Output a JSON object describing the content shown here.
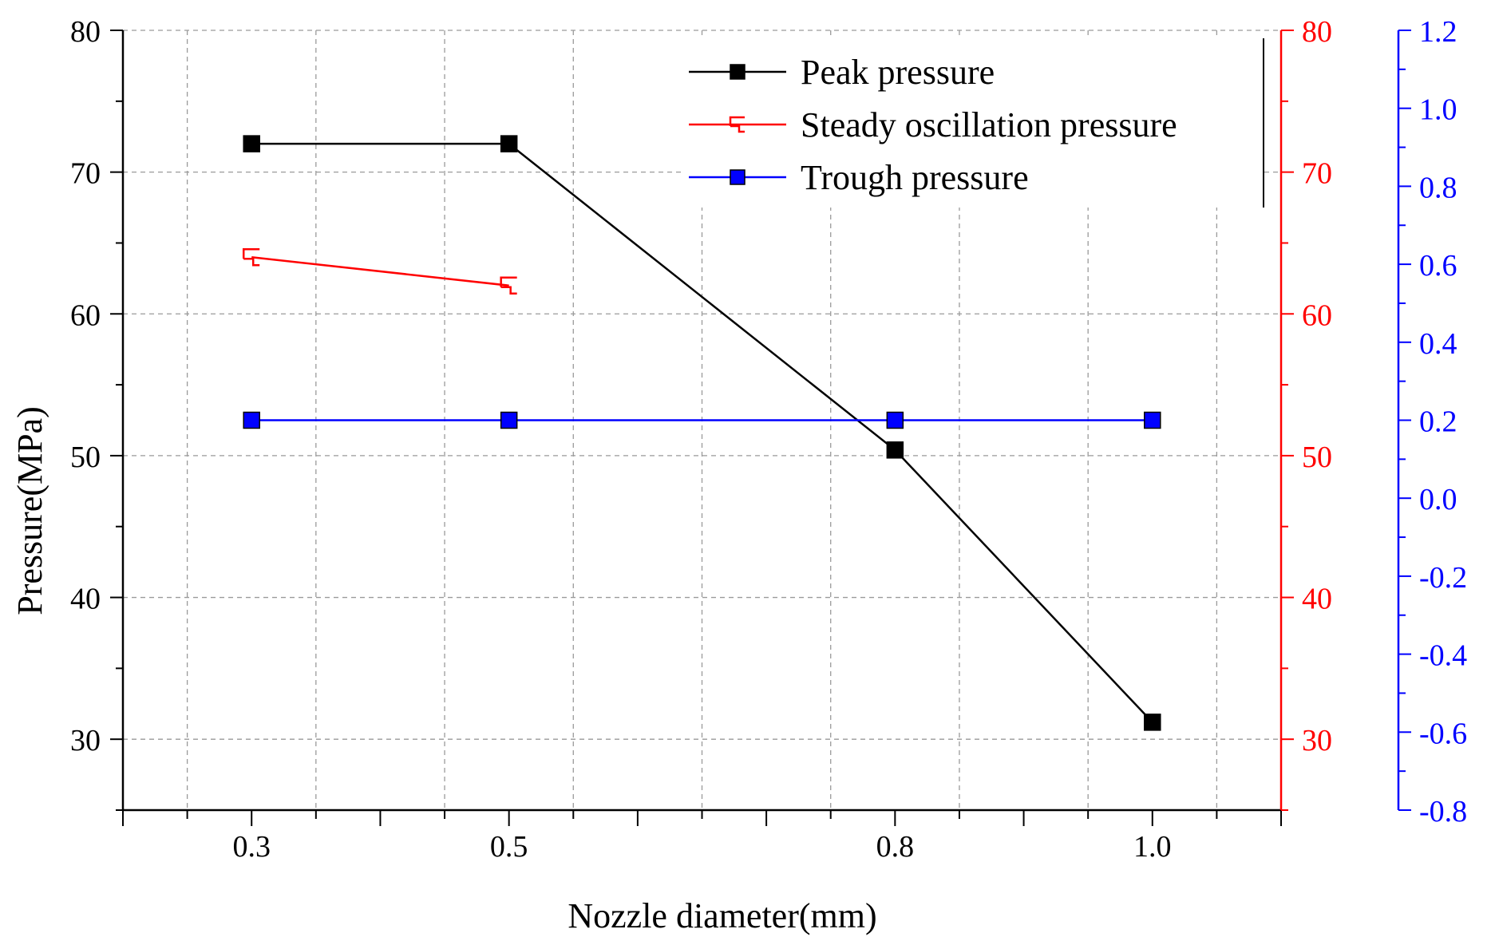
{
  "chart_data": {
    "type": "line",
    "xlabel": "Nozzle diameter(mm)",
    "ylabel": "Pressure(MPa)",
    "x_ticks": [
      "0.3",
      "0.5",
      "0.8",
      "1.0"
    ],
    "xlim": [
      0.2,
      1.1
    ],
    "y_left_ticks": [
      "30",
      "40",
      "50",
      "60",
      "70",
      "80"
    ],
    "ylim_left": [
      25,
      80
    ],
    "y_right_red_ticks": [
      "30",
      "40",
      "50",
      "60",
      "70",
      "80"
    ],
    "ylim_right_red": [
      25,
      80
    ],
    "y_right_blue_ticks": [
      "-0.8",
      "-0.6",
      "-0.4",
      "-0.2",
      "0.0",
      "0.2",
      "0.4",
      "0.6",
      "0.8",
      "1.0",
      "1.2"
    ],
    "ylim_right_blue": [
      -0.8,
      1.2
    ],
    "grid": true,
    "legend_position": "top-right",
    "series": [
      {
        "name": "Peak pressure",
        "axis": "left",
        "color": "#000000",
        "marker": "filled-square",
        "x": [
          0.3,
          0.5,
          0.8,
          1.0
        ],
        "y": [
          72,
          72,
          50.4,
          31.2
        ]
      },
      {
        "name": "Steady oscillation pressure",
        "axis": "right_red",
        "color": "#ff0000",
        "marker": "half-open-square",
        "x": [
          0.3,
          0.5
        ],
        "y": [
          64,
          62
        ]
      },
      {
        "name": "Trough pressure",
        "axis": "right_blue",
        "color": "#0000ff",
        "marker": "filled-square",
        "x": [
          0.3,
          0.5,
          0.8,
          1.0
        ],
        "y": [
          0.2,
          0.2,
          0.2,
          0.2
        ]
      }
    ]
  }
}
